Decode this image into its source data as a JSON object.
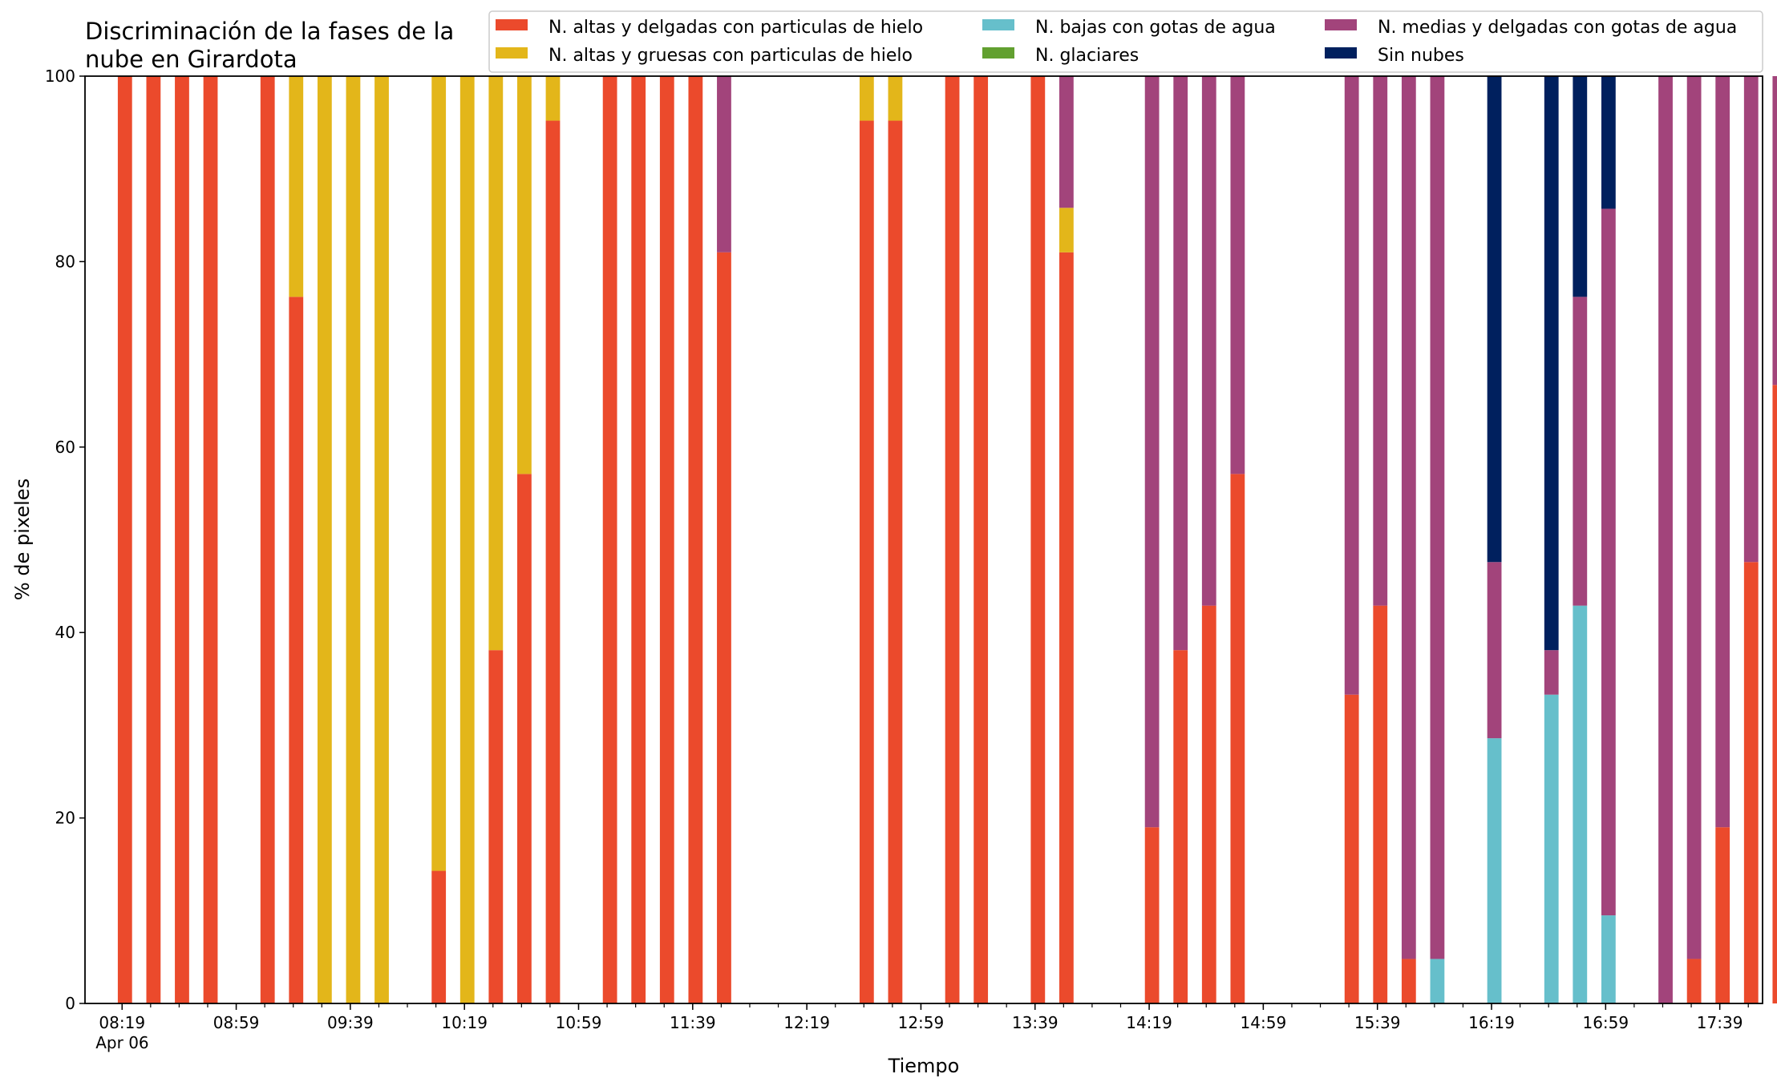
{
  "chart_data": {
    "type": "bar",
    "stacked": true,
    "title_lines": [
      "Discriminación de la fases de la",
      "nube en Girardota"
    ],
    "xlabel": "Tiempo",
    "ylabel": "% de pixeles",
    "ylim": [
      0,
      100
    ],
    "yticks": [
      0,
      20,
      40,
      60,
      80,
      100
    ],
    "xlim_minutes": [
      486,
      1074
    ],
    "x_unit": "minutes since 00:00 on Apr 06",
    "xtick_labels": [
      {
        "minute": 499,
        "label": "08:19",
        "sub": "Apr 06"
      },
      {
        "minute": 539,
        "label": "08:59"
      },
      {
        "minute": 579,
        "label": "09:39"
      },
      {
        "minute": 619,
        "label": "10:19"
      },
      {
        "minute": 659,
        "label": "10:59"
      },
      {
        "minute": 699,
        "label": "11:39"
      },
      {
        "minute": 739,
        "label": "12:19"
      },
      {
        "minute": 779,
        "label": "12:59"
      },
      {
        "minute": 819,
        "label": "13:39"
      },
      {
        "minute": 859,
        "label": "14:19"
      },
      {
        "minute": 899,
        "label": "14:59"
      },
      {
        "minute": 939,
        "label": "15:39"
      },
      {
        "minute": 979,
        "label": "16:19"
      },
      {
        "minute": 1019,
        "label": "16:59"
      },
      {
        "minute": 1059,
        "label": "17:39"
      }
    ],
    "minor_tick_step_minutes": 10,
    "bar_width_minutes": 5,
    "legend_position": "top-right",
    "series": [
      {
        "name": "N. altas y delgadas con particulas de hielo",
        "color": "#EB4A2C"
      },
      {
        "name": "N. altas y gruesas con particulas de hielo",
        "color": "#E3B61A"
      },
      {
        "name": "N. bajas con gotas de agua",
        "color": "#66BFCB"
      },
      {
        "name": "N. glaciares",
        "color": "#62A030"
      },
      {
        "name": "N. medias y delgadas con gotas de agua",
        "color": "#A2447B"
      },
      {
        "name": "Sin nubes",
        "color": "#00205E"
      }
    ],
    "bars": [
      {
        "t": "08:20",
        "values": [
          100,
          0,
          0,
          0,
          0,
          0
        ]
      },
      {
        "t": "08:30",
        "values": [
          100,
          0,
          0,
          0,
          0,
          0
        ]
      },
      {
        "t": "08:40",
        "values": [
          100,
          0,
          0,
          0,
          0,
          0
        ]
      },
      {
        "t": "08:50",
        "values": [
          100,
          0,
          0,
          0,
          0,
          0
        ]
      },
      {
        "t": "09:10",
        "values": [
          100,
          0,
          0,
          0,
          0,
          0
        ]
      },
      {
        "t": "09:20",
        "values": [
          76.2,
          23.8,
          0,
          0,
          0,
          0
        ]
      },
      {
        "t": "09:30",
        "values": [
          0,
          100,
          0,
          0,
          0,
          0
        ]
      },
      {
        "t": "09:40",
        "values": [
          0,
          100,
          0,
          0,
          0,
          0
        ]
      },
      {
        "t": "09:50",
        "values": [
          0,
          100,
          0,
          0,
          0,
          0
        ]
      },
      {
        "t": "10:10",
        "values": [
          14.3,
          85.7,
          0,
          0,
          0,
          0
        ]
      },
      {
        "t": "10:20",
        "values": [
          0,
          100,
          0,
          0,
          0,
          0
        ]
      },
      {
        "t": "10:30",
        "values": [
          38.1,
          61.9,
          0,
          0,
          0,
          0
        ]
      },
      {
        "t": "10:40",
        "values": [
          57.1,
          42.9,
          0,
          0,
          0,
          0
        ]
      },
      {
        "t": "10:50",
        "values": [
          95.2,
          4.8,
          0,
          0,
          0,
          0
        ]
      },
      {
        "t": "11:10",
        "values": [
          100,
          0,
          0,
          0,
          0,
          0
        ]
      },
      {
        "t": "11:20",
        "values": [
          100,
          0,
          0,
          0,
          0,
          0
        ]
      },
      {
        "t": "11:30",
        "values": [
          100,
          0,
          0,
          0,
          0,
          0
        ]
      },
      {
        "t": "11:40",
        "values": [
          100,
          0,
          0,
          0,
          0,
          0
        ]
      },
      {
        "t": "11:50",
        "values": [
          81.0,
          0,
          0,
          0,
          19.0,
          0
        ]
      },
      {
        "t": "12:40",
        "values": [
          95.2,
          4.8,
          0,
          0,
          0,
          0
        ]
      },
      {
        "t": "12:50",
        "values": [
          95.2,
          4.8,
          0,
          0,
          0,
          0
        ]
      },
      {
        "t": "13:10",
        "values": [
          100,
          0,
          0,
          0,
          0,
          0
        ]
      },
      {
        "t": "13:20",
        "values": [
          100,
          0,
          0,
          0,
          0,
          0
        ]
      },
      {
        "t": "13:40",
        "values": [
          100,
          0,
          0,
          0,
          0,
          0
        ]
      },
      {
        "t": "13:50",
        "values": [
          81.0,
          4.8,
          0,
          0,
          14.2,
          0
        ]
      },
      {
        "t": "14:20",
        "values": [
          19.0,
          0,
          0,
          0,
          81.0,
          0
        ]
      },
      {
        "t": "14:30",
        "values": [
          38.1,
          0,
          0,
          0,
          61.9,
          0
        ]
      },
      {
        "t": "14:40",
        "values": [
          42.9,
          0,
          0,
          0,
          57.1,
          0
        ]
      },
      {
        "t": "14:50",
        "values": [
          57.1,
          0,
          0,
          0,
          42.9,
          0
        ]
      },
      {
        "t": "15:30",
        "values": [
          33.3,
          0,
          0,
          0,
          66.7,
          0
        ]
      },
      {
        "t": "15:40",
        "values": [
          42.9,
          0,
          0,
          0,
          57.1,
          0
        ]
      },
      {
        "t": "15:50",
        "values": [
          4.8,
          0,
          0,
          0,
          95.2,
          0
        ]
      },
      {
        "t": "16:00",
        "values": [
          0,
          0,
          4.8,
          0,
          95.2,
          0
        ]
      },
      {
        "t": "16:20",
        "values": [
          0,
          0,
          28.6,
          0,
          19.0,
          52.4
        ]
      },
      {
        "t": "16:40",
        "values": [
          0,
          0,
          33.3,
          0,
          4.8,
          61.9
        ]
      },
      {
        "t": "16:50",
        "values": [
          0,
          0,
          42.9,
          0,
          33.3,
          23.8
        ]
      },
      {
        "t": "17:00",
        "values": [
          0,
          0,
          9.5,
          0,
          76.2,
          14.3
        ]
      },
      {
        "t": "17:20",
        "values": [
          0,
          0,
          0,
          0,
          100,
          0
        ]
      },
      {
        "t": "17:30",
        "values": [
          4.8,
          0,
          0,
          0,
          95.2,
          0
        ]
      },
      {
        "t": "17:40",
        "values": [
          19.0,
          0,
          0,
          0,
          81.0,
          0
        ]
      },
      {
        "t": "17:50",
        "values": [
          47.6,
          0,
          0,
          0,
          52.4,
          0
        ]
      },
      {
        "t": "18:00",
        "values": [
          66.7,
          0,
          0,
          0,
          33.3,
          0
        ]
      }
    ]
  }
}
